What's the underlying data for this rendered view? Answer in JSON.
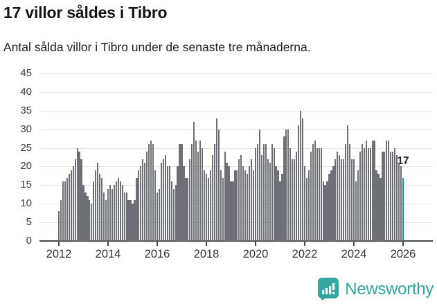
{
  "header": {
    "title": "17 villor såldes i Tibro",
    "subtitle": "Antal sålda villor i Tibro under de senaste tre månaderna."
  },
  "chart_data": {
    "type": "bar",
    "title": "17 villor såldes i Tibro",
    "subtitle": "Antal sålda villor i Tibro under de senaste tre månaderna.",
    "frequency": "monthly",
    "x_start": "2012-01",
    "x_end": "2026-01",
    "values": [
      8,
      11,
      16,
      16,
      17,
      18,
      19,
      20,
      22,
      25,
      24,
      22,
      15,
      13,
      12,
      11,
      10,
      16,
      19,
      21,
      18,
      17,
      13,
      11,
      14,
      15,
      14,
      15,
      16,
      17,
      16,
      15,
      13,
      13,
      11,
      11,
      10,
      11,
      17,
      19,
      20,
      22,
      21,
      24,
      26,
      27,
      26,
      19,
      13,
      14,
      21,
      22,
      23,
      20,
      20,
      16,
      14,
      15,
      20,
      26,
      26,
      20,
      17,
      17,
      22,
      26,
      32,
      27,
      24,
      27,
      25,
      19,
      18,
      17,
      19,
      23,
      26,
      33,
      30,
      19,
      17,
      24,
      21,
      20,
      16,
      16,
      19,
      19,
      22,
      23,
      20,
      19,
      18,
      20,
      22,
      19,
      25,
      26,
      30,
      23,
      26,
      26,
      22,
      21,
      26,
      25,
      20,
      19,
      16,
      18,
      28,
      30,
      30,
      25,
      22,
      22,
      24,
      31,
      35,
      33,
      20,
      17,
      19,
      24,
      26,
      27,
      25,
      25,
      25,
      16,
      15,
      16,
      18,
      19,
      20,
      22,
      24,
      23,
      22,
      22,
      26,
      31,
      26,
      22,
      22,
      16,
      19,
      24,
      26,
      25,
      27,
      25,
      25,
      27,
      27,
      19,
      18,
      17,
      24,
      24,
      27,
      27,
      24,
      24,
      25,
      23,
      21,
      20,
      17
    ],
    "highlight_last_value": 17,
    "highlight_label": "17",
    "x_tick_labels": [
      "2012",
      "2014",
      "2016",
      "2018",
      "2020",
      "2022",
      "2024",
      "2026"
    ],
    "y_ticks": [
      0,
      5,
      10,
      15,
      20,
      25,
      30,
      35,
      40,
      45
    ],
    "ylim": [
      0,
      45
    ],
    "grid": "horizontal",
    "legend": "none",
    "bar_color": "#6f6f77",
    "highlight_color": "#00a09a"
  },
  "annotation": {
    "label": "17"
  },
  "footer": {
    "brand": "Newsworthy"
  },
  "colors": {
    "bar": "#6f6f77",
    "highlight": "#00a09a",
    "gridline": "#e6e6e6",
    "axis": "#47474a",
    "brand_teal": "#2ea8a2",
    "title_text": "#141414"
  }
}
